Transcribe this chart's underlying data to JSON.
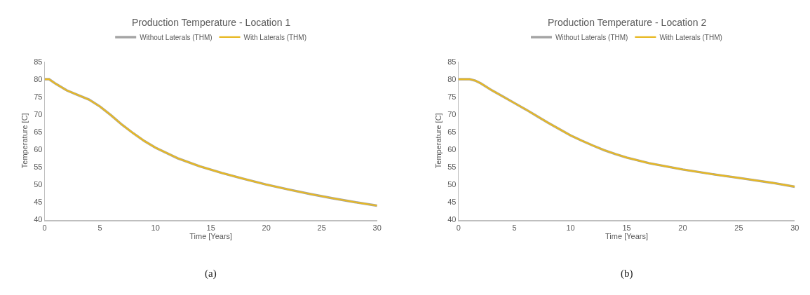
{
  "chart_data": [
    {
      "type": "line",
      "title": "Production Temperature - Location 1",
      "xlabel": "Time [Years]",
      "ylabel": "Temperature [C]",
      "xlim": [
        0,
        30
      ],
      "xticks": [
        0,
        5,
        10,
        15,
        20,
        25,
        30
      ],
      "ylim": [
        40,
        85
      ],
      "yticks": [
        40,
        45,
        50,
        55,
        60,
        65,
        70,
        75,
        80,
        85
      ],
      "legend": "top",
      "grid": false,
      "annotations": [
        "(a)"
      ],
      "x": [
        0,
        0.4,
        1,
        2,
        3,
        4,
        5,
        6,
        7,
        8,
        9,
        10,
        12,
        14,
        16,
        18,
        20,
        22,
        24,
        26,
        28,
        30
      ],
      "series": [
        {
          "name": "Without Laterals (THM)",
          "color": "#a5a5a5",
          "values": [
            80,
            80,
            78.7,
            76.8,
            75.5,
            74.2,
            72.2,
            69.7,
            67,
            64.6,
            62.4,
            60.5,
            57.5,
            55.2,
            53.3,
            51.6,
            50,
            48.6,
            47.3,
            46.1,
            45,
            44
          ]
        },
        {
          "name": "With Laterals (THM)",
          "color": "#e8b923",
          "values": [
            80,
            80,
            78.7,
            76.8,
            75.5,
            74.2,
            72.2,
            69.7,
            67,
            64.6,
            62.4,
            60.5,
            57.5,
            55.2,
            53.3,
            51.6,
            50,
            48.6,
            47.3,
            46.1,
            45,
            44
          ]
        }
      ]
    },
    {
      "type": "line",
      "title": "Production Temperature - Location 2",
      "xlabel": "Time [Years]",
      "ylabel": "Temperature [C]",
      "xlim": [
        0,
        30
      ],
      "xticks": [
        0,
        5,
        10,
        15,
        20,
        25,
        30
      ],
      "ylim": [
        40,
        85
      ],
      "yticks": [
        40,
        45,
        50,
        55,
        60,
        65,
        70,
        75,
        80,
        85
      ],
      "legend": "top",
      "grid": false,
      "annotations": [
        "(b)"
      ],
      "x": [
        0,
        1,
        1.5,
        2,
        3,
        4,
        5,
        6,
        7,
        8,
        9,
        10,
        11,
        12,
        13,
        14,
        15,
        17,
        20,
        23,
        25,
        28,
        30
      ],
      "series": [
        {
          "name": "Without Laterals (THM)",
          "color": "#a5a5a5",
          "values": [
            80,
            80,
            79.6,
            78.8,
            76.8,
            75,
            73.2,
            71.4,
            69.5,
            67.6,
            65.8,
            64,
            62.5,
            61.1,
            59.8,
            58.7,
            57.7,
            56.1,
            54.3,
            52.8,
            51.9,
            50.5,
            49.4
          ]
        },
        {
          "name": "With Laterals (THM)",
          "color": "#e8b923",
          "values": [
            80,
            80,
            79.6,
            78.8,
            76.8,
            75,
            73.2,
            71.4,
            69.5,
            67.6,
            65.8,
            64,
            62.5,
            61.1,
            59.8,
            58.7,
            57.7,
            56.1,
            54.3,
            52.8,
            51.9,
            50.5,
            49.4
          ]
        }
      ]
    }
  ]
}
